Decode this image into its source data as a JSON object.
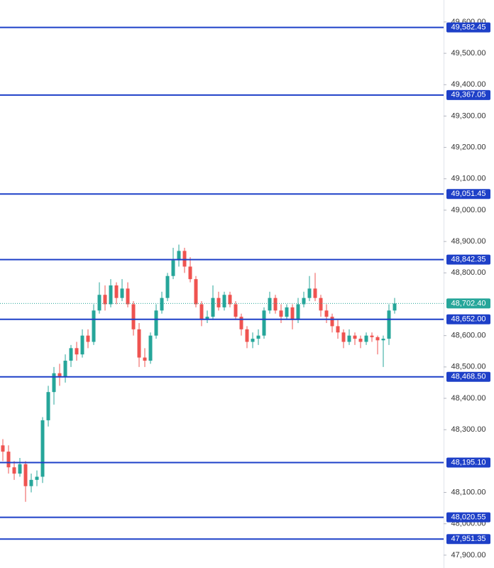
{
  "chart_data": {
    "type": "candlestick",
    "ylim": [
      47859,
      49670
    ],
    "yticks": [
      {
        "value": 49600,
        "label": "49,600.00"
      },
      {
        "value": 49500,
        "label": "49,500.00"
      },
      {
        "value": 49400,
        "label": "49,400.00"
      },
      {
        "value": 49300,
        "label": "49,300.00"
      },
      {
        "value": 49200,
        "label": "49,200.00"
      },
      {
        "value": 49100,
        "label": "49,100.00"
      },
      {
        "value": 49000,
        "label": "49,000.00"
      },
      {
        "value": 48900,
        "label": "48,900.00"
      },
      {
        "value": 48800,
        "label": "48,800.00"
      },
      {
        "value": 48600,
        "label": "48,600.00"
      },
      {
        "value": 48500,
        "label": "48,500.00"
      },
      {
        "value": 48400,
        "label": "48,400.00"
      },
      {
        "value": 48300,
        "label": "48,300.00"
      },
      {
        "value": 48100,
        "label": "48,100.00"
      },
      {
        "value": 48000,
        "label": "48,000.00"
      },
      {
        "value": 47900,
        "label": "47,900.00"
      }
    ],
    "up_color": "#26a69a",
    "down_color": "#ef5350",
    "level_color": "#1e40c8",
    "levels": [
      {
        "value": 49582.45,
        "label": "49,582.45"
      },
      {
        "value": 49367.05,
        "label": "49,367.05"
      },
      {
        "value": 49051.45,
        "label": "49,051.45"
      },
      {
        "value": 48842.35,
        "label": "48,842.35"
      },
      {
        "value": 48652.0,
        "label": "48,652.00"
      },
      {
        "value": 48468.5,
        "label": "48,468.50"
      },
      {
        "value": 48195.1,
        "label": "48,195.10"
      },
      {
        "value": 48020.55,
        "label": "48,020.55"
      },
      {
        "value": 47951.35,
        "label": "47,951.35"
      }
    ],
    "last_price": {
      "value": 48702.4,
      "label": "48,702.40"
    },
    "open": [
      48250,
      48230,
      48180,
      48160,
      48190,
      48120,
      48140,
      48150,
      48330,
      48420,
      48480,
      48470,
      48520,
      48560,
      48540,
      48600,
      48580,
      48680,
      48730,
      48700,
      48760,
      48720,
      48750,
      48700,
      48620,
      48530,
      48520,
      48600,
      48680,
      48720,
      48790,
      48840,
      48870,
      48820,
      48780,
      48700,
      48650,
      48660,
      48720,
      48690,
      48730,
      48700,
      48660,
      48620,
      48580,
      48590,
      48600,
      48680,
      48720,
      48680,
      48660,
      48690,
      48650,
      48700,
      48720,
      48750,
      48720,
      48680,
      48660,
      48630,
      48610,
      48580,
      48600,
      48590,
      48580,
      48600,
      48595,
      48585,
      48590,
      48680
    ],
    "high": [
      48270,
      48250,
      48200,
      48210,
      48200,
      48160,
      48170,
      48340,
      48440,
      48500,
      48510,
      48540,
      48570,
      48580,
      48620,
      48620,
      48700,
      48770,
      48760,
      48780,
      48770,
      48780,
      48770,
      48710,
      48640,
      48560,
      48610,
      48700,
      48740,
      48800,
      48880,
      48890,
      48880,
      48850,
      48790,
      48710,
      48680,
      48760,
      48740,
      48740,
      48740,
      48710,
      48670,
      48630,
      48610,
      48620,
      48690,
      48740,
      48730,
      48700,
      48700,
      48700,
      48720,
      48740,
      48790,
      48800,
      48730,
      48700,
      48670,
      48650,
      48620,
      48620,
      48610,
      48600,
      48610,
      48610,
      48600,
      48600,
      48700,
      48720
    ],
    "low": [
      48200,
      48160,
      48140,
      48150,
      48070,
      48100,
      48120,
      48130,
      48310,
      48380,
      48440,
      48450,
      48500,
      48520,
      48530,
      48560,
      48570,
      48670,
      48680,
      48690,
      48700,
      48710,
      48690,
      48600,
      48500,
      48500,
      48510,
      48590,
      48670,
      48710,
      48780,
      48820,
      48800,
      48770,
      48690,
      48630,
      48640,
      48650,
      48680,
      48680,
      48690,
      48650,
      48600,
      48560,
      48560,
      48570,
      48590,
      48670,
      48670,
      48640,
      48650,
      48620,
      48640,
      48690,
      48710,
      48710,
      48660,
      48640,
      48610,
      48590,
      48560,
      48570,
      48570,
      48560,
      48570,
      48580,
      48540,
      48500,
      48570,
      48670
    ],
    "close": [
      48230,
      48180,
      48160,
      48190,
      48120,
      48140,
      48150,
      48330,
      48420,
      48480,
      48470,
      48520,
      48560,
      48540,
      48600,
      48580,
      48680,
      48730,
      48700,
      48760,
      48720,
      48750,
      48700,
      48620,
      48530,
      48520,
      48600,
      48680,
      48720,
      48790,
      48840,
      48870,
      48820,
      48780,
      48700,
      48650,
      48660,
      48720,
      48690,
      48730,
      48700,
      48660,
      48620,
      48580,
      48590,
      48600,
      48680,
      48720,
      48680,
      48660,
      48690,
      48650,
      48700,
      48720,
      48750,
      48720,
      48680,
      48660,
      48630,
      48610,
      48580,
      48600,
      48590,
      48580,
      48600,
      48595,
      48585,
      48590,
      48680,
      48702.4
    ]
  }
}
